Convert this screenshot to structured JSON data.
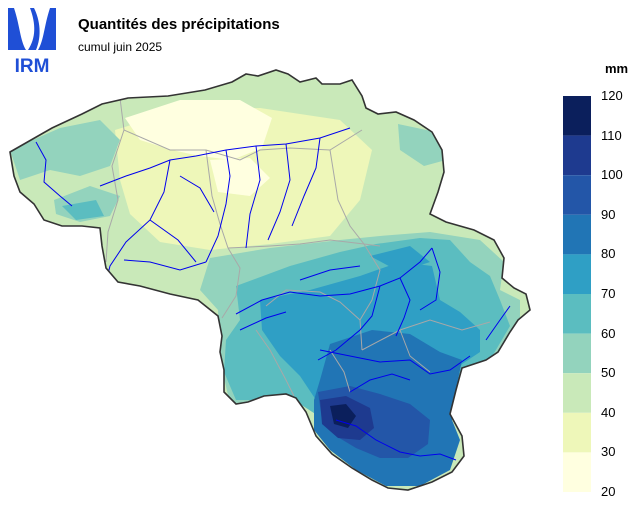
{
  "header": {
    "title": "Quantités des précipitations",
    "subtitle": "cumul juin 2025"
  },
  "logo": {
    "text": "IRM",
    "color": "#1f4fd6"
  },
  "legend": {
    "unit": "mm",
    "classes": [
      {
        "from": 110,
        "to": 120,
        "color": "#0b1f5c"
      },
      {
        "from": 100,
        "to": 110,
        "color": "#1e3a8f"
      },
      {
        "from": 90,
        "to": 100,
        "color": "#2356a8"
      },
      {
        "from": 80,
        "to": 90,
        "color": "#2175b5"
      },
      {
        "from": 70,
        "to": 80,
        "color": "#2f9fc5"
      },
      {
        "from": 60,
        "to": 70,
        "color": "#5bbdc0"
      },
      {
        "from": 50,
        "to": 60,
        "color": "#93d3bd"
      },
      {
        "from": 40,
        "to": 50,
        "color": "#c9e9b9"
      },
      {
        "from": 30,
        "to": 40,
        "color": "#eef7b9"
      },
      {
        "from": 20,
        "to": 30,
        "color": "#ffffe0"
      }
    ],
    "tick_labels": [
      "120",
      "110",
      "100",
      "90",
      "80",
      "70",
      "60",
      "50",
      "40",
      "30",
      "20"
    ]
  },
  "map": {
    "region": "Belgique",
    "colors": {
      "border": "#333333",
      "rivers": "#0000ee",
      "provinces": "#a8a8a8"
    }
  }
}
